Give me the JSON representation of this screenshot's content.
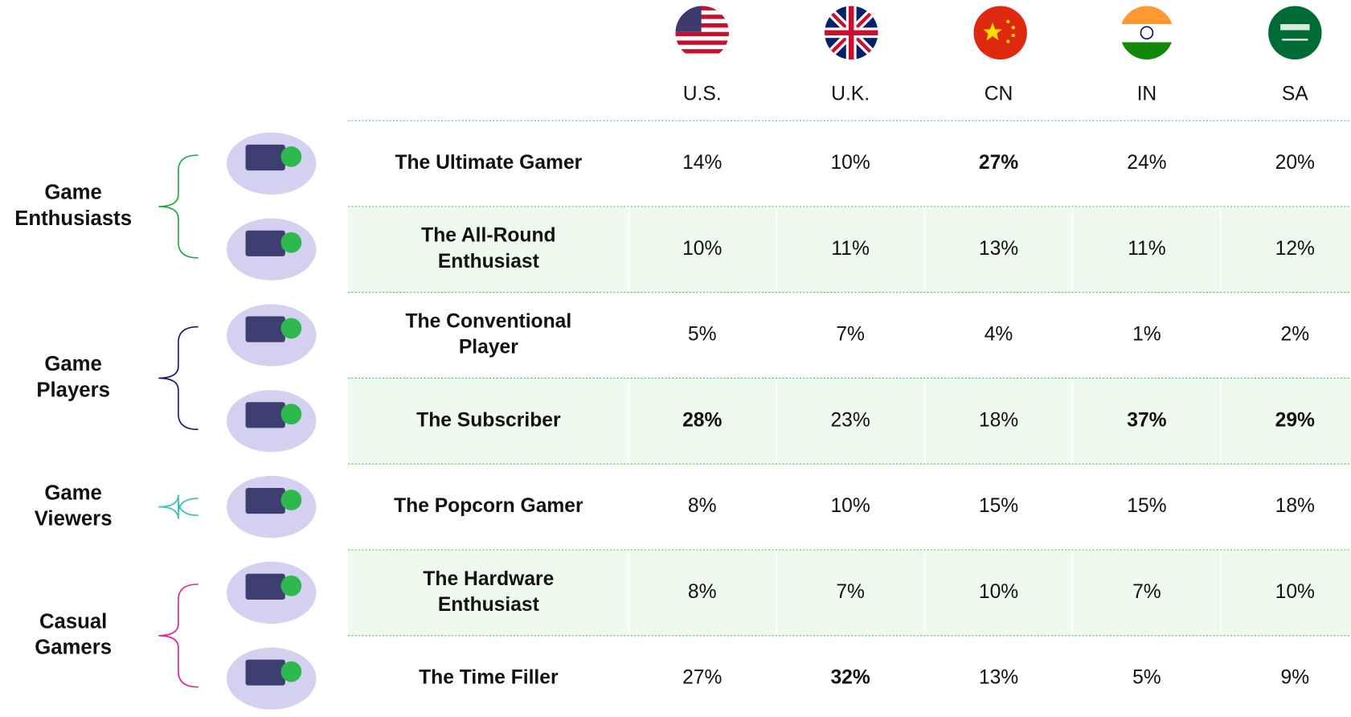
{
  "columns": [
    "U.S.",
    "U.K.",
    "CN",
    "IN",
    "SA"
  ],
  "groups": [
    {
      "label": [
        "Game",
        "Enthusiasts"
      ],
      "color": "#1aaa3c",
      "rows": [
        0,
        1
      ]
    },
    {
      "label": [
        "Game",
        "Players"
      ],
      "color": "#14147e",
      "rows": [
        2,
        3
      ]
    },
    {
      "label": [
        "Game",
        "Viewers"
      ],
      "color": "#2ec4b0",
      "rows": [
        4,
        4
      ]
    },
    {
      "label": [
        "Casual",
        "Gamers"
      ],
      "color": "#e41e8e",
      "rows": [
        5,
        6
      ]
    }
  ],
  "highlight_color": "#1aaa3c",
  "rows": [
    {
      "name": [
        "The Ultimate Gamer"
      ],
      "values": [
        "14%",
        "10%",
        "27%",
        "24%",
        "20%"
      ],
      "highlight": [
        2
      ]
    },
    {
      "name": [
        "The All-Round",
        "Enthusiast"
      ],
      "values": [
        "10%",
        "11%",
        "13%",
        "11%",
        "12%"
      ],
      "highlight": []
    },
    {
      "name": [
        "The Conventional",
        "Player"
      ],
      "values": [
        "5%",
        "7%",
        "4%",
        "1%",
        "2%"
      ],
      "highlight": []
    },
    {
      "name": [
        "The Subscriber"
      ],
      "values": [
        "28%",
        "23%",
        "18%",
        "37%",
        "29%"
      ],
      "highlight": [
        0,
        3,
        4
      ]
    },
    {
      "name": [
        "The Popcorn Gamer"
      ],
      "values": [
        "8%",
        "10%",
        "15%",
        "15%",
        "18%"
      ],
      "highlight": []
    },
    {
      "name": [
        "The Hardware",
        "Enthusiast"
      ],
      "values": [
        "8%",
        "7%",
        "10%",
        "7%",
        "10%"
      ],
      "highlight": []
    },
    {
      "name": [
        "The Time Filler"
      ],
      "values": [
        "27%",
        "32%",
        "13%",
        "5%",
        "9%"
      ],
      "highlight": [
        1
      ]
    }
  ]
}
